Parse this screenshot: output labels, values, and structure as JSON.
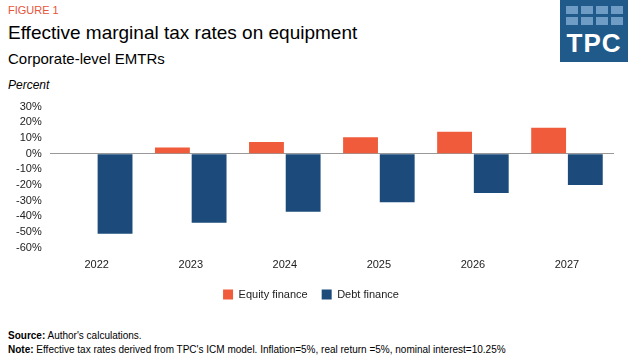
{
  "figure_label": "FIGURE 1",
  "logo": "TPC",
  "chart_data": {
    "type": "bar",
    "title": "Effective marginal tax rates on equipment",
    "subtitle": "Corporate-level EMTRs",
    "y_label": "Percent",
    "categories": [
      "2022",
      "2023",
      "2024",
      "2025",
      "2026",
      "2027"
    ],
    "series": [
      {
        "name": "Equity finance",
        "color": "#ef5b3b",
        "values": [
          0,
          4,
          7.5,
          10.5,
          14,
          16.5
        ]
      },
      {
        "name": "Debt finance",
        "color": "#1b4a7b",
        "values": [
          -51,
          -44,
          -37,
          -31,
          -25,
          -20
        ]
      }
    ],
    "ylim": [
      -60,
      30
    ],
    "yticks": [
      {
        "value": -60,
        "label": "-60%"
      },
      {
        "value": -50,
        "label": "-50%"
      },
      {
        "value": -40,
        "label": "-40%"
      },
      {
        "value": -30,
        "label": "-30%"
      },
      {
        "value": -20,
        "label": "-20%"
      },
      {
        "value": -10,
        "label": "-10%"
      },
      {
        "value": 0,
        "label": "0%"
      },
      {
        "value": 10,
        "label": "10%"
      },
      {
        "value": 20,
        "label": "20%"
      },
      {
        "value": 30,
        "label": "30%"
      }
    ],
    "grid": false,
    "legend": "bottom"
  },
  "source_label": "Source:",
  "source": "Author's calculations.",
  "note_label": "Note:",
  "note": "Effective tax rates derived from TPC's ICM model. Inflation=5%, real return =5%, nominal interest=10.25%"
}
